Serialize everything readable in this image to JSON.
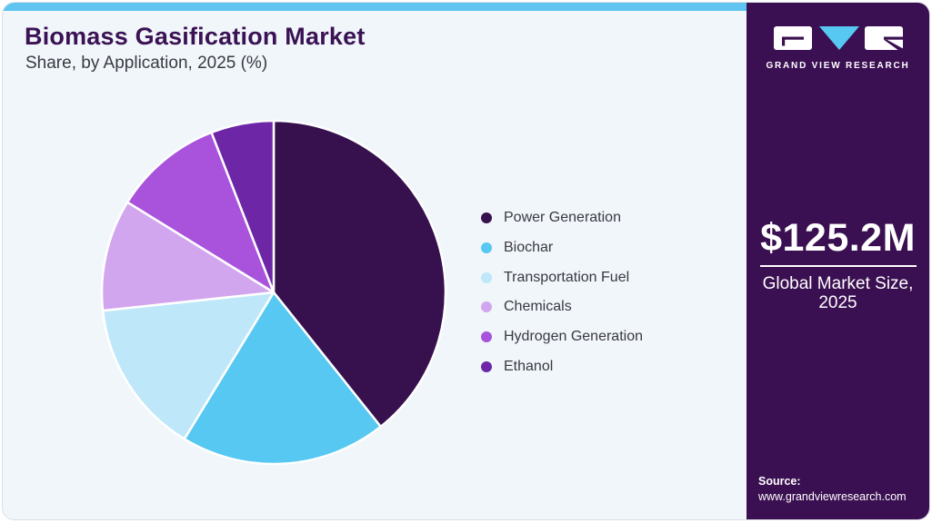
{
  "header": {
    "title": "Biomass Gasification Market",
    "subtitle": "Share, by Application, 2025 (%)"
  },
  "chart_data": {
    "type": "pie",
    "title": "Biomass Gasification Market Share, by Application, 2025 (%)",
    "labels": [
      "Power Generation",
      "Biochar",
      "Transportation Fuel",
      "Chemicals",
      "Hydrogen Generation",
      "Ethanol"
    ],
    "values": [
      39.3,
      19.4,
      14.6,
      10.5,
      10.3,
      5.9
    ],
    "unit": "%",
    "colors": [
      "#37104e",
      "#56c8f2",
      "#bee8fa",
      "#d2a6ef",
      "#a952dc",
      "#6c26a6"
    ],
    "start_angle_deg": 0,
    "direction": "clockwise",
    "legend_position": "right",
    "slice_border_color": "#ffffff"
  },
  "sidebar": {
    "brand": {
      "name": "GRAND VIEW RESEARCH"
    },
    "market_size": {
      "value": "$125.2M",
      "label_line1": "Global Market Size,",
      "label_line2": "2025"
    },
    "source": {
      "label": "Source:",
      "url": "www.grandviewresearch.com"
    }
  },
  "colors": {
    "accent_top_bar": "#5fc4ef",
    "sidebar_background": "#3b1052",
    "content_background": "#f0f6fa",
    "title_text": "#3b1254",
    "subtitle_text": "#3a3a44",
    "legend_text": "#3b3844",
    "logo_triangle": "#56c8f2"
  }
}
